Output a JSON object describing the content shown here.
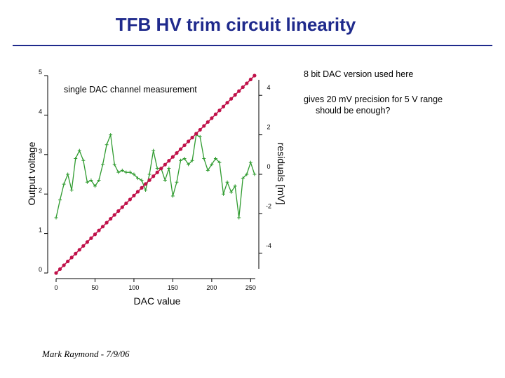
{
  "slide": {
    "title": "TFB HV trim circuit linearity",
    "notes": [
      "8 bit DAC version used here",
      "gives 20 mV precision for 5 V range",
      "should be enough?"
    ],
    "footer": "Mark Raymond - 7/9/06"
  },
  "chart_data": {
    "type": "line",
    "annotation": "single DAC channel measurement",
    "xlabel": "DAC value",
    "ylabel": "Output voltage",
    "y2label": "residuals [mV]",
    "xlim": [
      0,
      256
    ],
    "ylim": [
      0,
      5
    ],
    "y2lim": [
      -5,
      5
    ],
    "x_ticks": [
      "0",
      "50",
      "100",
      "150",
      "200",
      "250"
    ],
    "y_ticks": [
      "0",
      "1",
      "2",
      "3",
      "4",
      "5"
    ],
    "y2_ticks": [
      "-4",
      "-2",
      "0",
      "2",
      "4"
    ],
    "grid": false,
    "colors": {
      "output": "#c0124a",
      "residuals": "#2f9b2f"
    },
    "series": [
      {
        "axis": "left",
        "marker": "dot",
        "x": [
          0,
          5,
          10,
          15,
          20,
          25,
          30,
          35,
          40,
          45,
          50,
          55,
          60,
          65,
          70,
          75,
          80,
          85,
          90,
          95,
          100,
          105,
          110,
          115,
          120,
          125,
          130,
          135,
          140,
          145,
          150,
          155,
          160,
          165,
          170,
          175,
          180,
          185,
          190,
          195,
          200,
          205,
          210,
          215,
          220,
          225,
          230,
          235,
          240,
          245,
          250,
          255
        ],
        "values": [
          0,
          0.098,
          0.196,
          0.294,
          0.392,
          0.49,
          0.588,
          0.686,
          0.784,
          0.882,
          0.98,
          1.078,
          1.176,
          1.275,
          1.373,
          1.471,
          1.569,
          1.667,
          1.765,
          1.863,
          1.961,
          2.059,
          2.157,
          2.255,
          2.353,
          2.451,
          2.549,
          2.647,
          2.745,
          2.843,
          2.941,
          3.039,
          3.137,
          3.235,
          3.333,
          3.431,
          3.529,
          3.627,
          3.725,
          3.824,
          3.922,
          4.02,
          4.118,
          4.216,
          4.314,
          4.412,
          4.51,
          4.608,
          4.706,
          4.804,
          4.902,
          5
        ]
      },
      {
        "axis": "right",
        "marker": "plus",
        "x": [
          0,
          5,
          10,
          15,
          20,
          25,
          30,
          35,
          40,
          45,
          50,
          55,
          60,
          65,
          70,
          75,
          80,
          85,
          90,
          95,
          100,
          105,
          110,
          115,
          120,
          125,
          130,
          135,
          140,
          145,
          150,
          155,
          160,
          165,
          170,
          175,
          180,
          185,
          190,
          195,
          200,
          205,
          210,
          215,
          220,
          225,
          230,
          235,
          240,
          245,
          250,
          255
        ],
        "values": [
          -2.2,
          -1.3,
          -0.5,
          0.0,
          -0.8,
          0.8,
          1.2,
          0.7,
          -0.4,
          -0.3,
          -0.6,
          -0.3,
          0.5,
          1.5,
          2.0,
          0.5,
          0.1,
          0.2,
          0.1,
          0.1,
          0.0,
          -0.2,
          -0.3,
          -0.8,
          0.0,
          1.2,
          0.3,
          0.3,
          -0.3,
          0.3,
          -1.1,
          -0.4,
          0.7,
          0.8,
          0.5,
          0.7,
          2.0,
          1.9,
          0.8,
          0.2,
          0.5,
          0.8,
          0.6,
          -1.0,
          -0.4,
          -0.9,
          -0.6,
          -2.2,
          -0.2,
          0.0,
          0.6,
          0.0
        ]
      }
    ]
  }
}
